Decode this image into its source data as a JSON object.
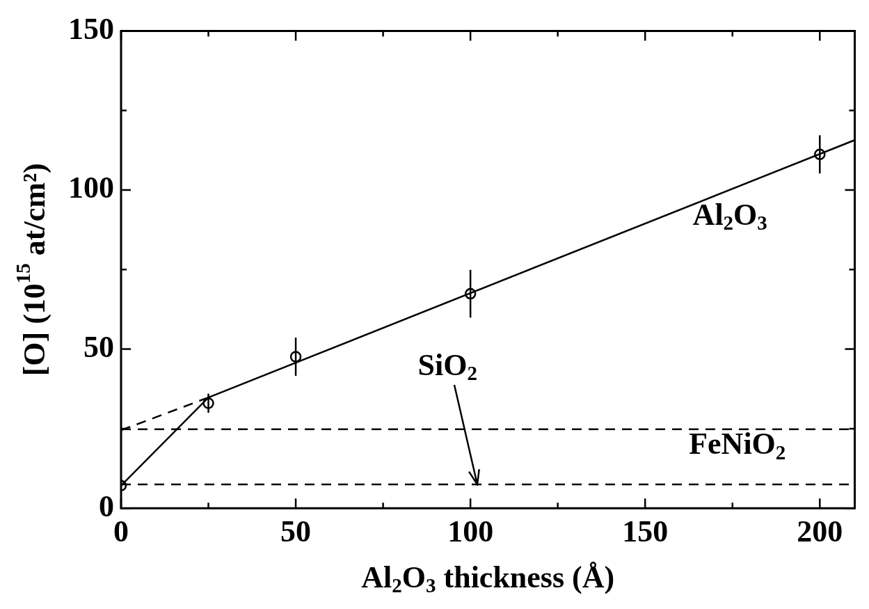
{
  "chart_data": {
    "type": "scatter",
    "xlabel": "Al$_{2}$O$_{3}$ thickness (Å)",
    "ylabel": "[O] (10$^{15}$ at/cm²)",
    "xlim": [
      0,
      210
    ],
    "ylim": [
      0,
      150
    ],
    "xticks": [
      0,
      {
        "value": 25,
        "label": null
      },
      50,
      {
        "value": 75,
        "label": null
      },
      100,
      {
        "value": 125,
        "label": null
      },
      150,
      {
        "value": 175,
        "label": null
      },
      200
    ],
    "yticks": [
      0,
      {
        "value": 25,
        "label": null
      },
      50,
      {
        "value": 75,
        "label": null
      },
      100,
      {
        "value": 125,
        "label": null
      },
      150
    ],
    "legend": false,
    "series": [
      {
        "type": "scatter",
        "color": "#000000",
        "marker": "circle",
        "x": [
          0,
          25,
          50,
          100,
          200
        ],
        "values": [
          7.1,
          33,
          47.6,
          67.4,
          111.2
        ],
        "errors": [
          null,
          3,
          6,
          7.5,
          6
        ]
      },
      {
        "type": "line",
        "color": "#000000",
        "marker": "none",
        "line_style": "solid",
        "x": [
          0,
          25
        ],
        "values": [
          7.1,
          34.8
        ]
      },
      {
        "type": "line",
        "color": "#000000",
        "marker": "none",
        "line_style": "dashed",
        "x": [
          0,
          25
        ],
        "values": [
          24.5,
          34.8
        ]
      },
      {
        "type": "line",
        "color": "#000000",
        "marker": "none",
        "line_style": "solid",
        "x": [
          25,
          210
        ],
        "values": [
          34.8,
          115.7
        ]
      }
    ],
    "ref_lines": [
      {
        "axis": "y",
        "value": 24.8,
        "color": "#000000",
        "line_style": "dashed"
      },
      {
        "axis": "y",
        "value": 7.5,
        "color": "#000000",
        "line_style": "dashed"
      }
    ],
    "annotations": [
      "Al$_{2}$O$_{3}$",
      {
        "text": "SiO$_{2}$",
        "x": 102,
        "y": 7.5
      },
      "FeNiO$_{2}$"
    ]
  }
}
